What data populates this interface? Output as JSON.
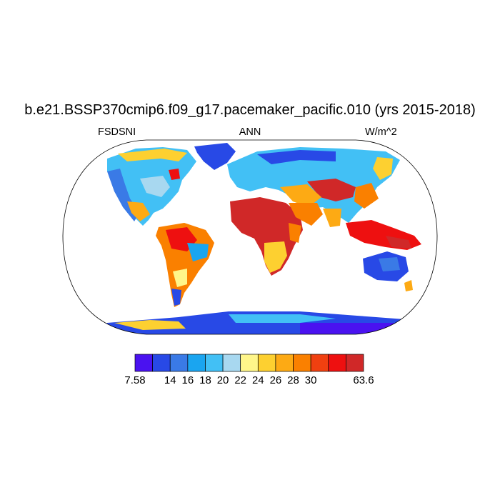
{
  "header": {
    "title": "b.e21.BSSP370cmip6.f09_g17.pacemaker_pacific.010 (yrs 2015-2018)",
    "left_label": "FSDSNI",
    "center_label": "ANN",
    "right_label": "W/m^2"
  },
  "colorbar": {
    "colors": [
      "#4a12f0",
      "#2849e6",
      "#3a7ae6",
      "#1aa5f0",
      "#42c0f5",
      "#a8d8f0",
      "#fff68a",
      "#fdd030",
      "#fdaa14",
      "#fa8000",
      "#f04010",
      "#ee1010",
      "#d02828"
    ],
    "tick_labels": [
      "7.58",
      "14",
      "16",
      "18",
      "20",
      "22",
      "24",
      "26",
      "28",
      "30",
      "63.6"
    ]
  }
}
